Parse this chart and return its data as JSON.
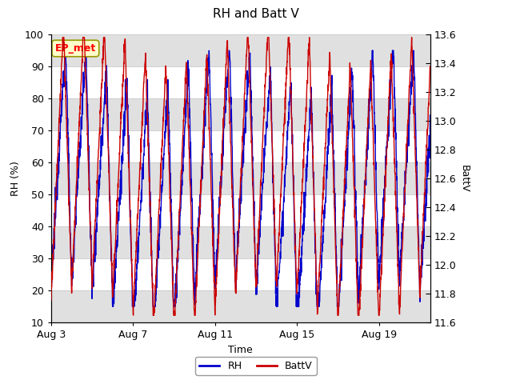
{
  "title": "RH and Batt V",
  "xlabel": "Time",
  "ylabel_left": "RH (%)",
  "ylabel_right": "BattV",
  "ylim_left": [
    10,
    100
  ],
  "ylim_right": [
    11.6,
    13.6
  ],
  "x_tick_labels": [
    "Aug 3",
    "Aug 7",
    "Aug 11",
    "Aug 15",
    "Aug 19"
  ],
  "x_ticks": [
    0,
    4,
    8,
    12,
    16
  ],
  "annotation_text": "EP_met",
  "rh_color": "#0000cc",
  "battv_color": "#cc0000",
  "fig_bg_color": "#ffffff",
  "plot_bg_color": "#ffffff",
  "band_color": "#e0e0e0",
  "grid_color": "#c8c8c8",
  "legend_labels": [
    "RH",
    "BattV"
  ],
  "n_days": 18.5,
  "title_fontsize": 11,
  "label_fontsize": 9,
  "tick_fontsize": 9,
  "annot_fontsize": 9
}
